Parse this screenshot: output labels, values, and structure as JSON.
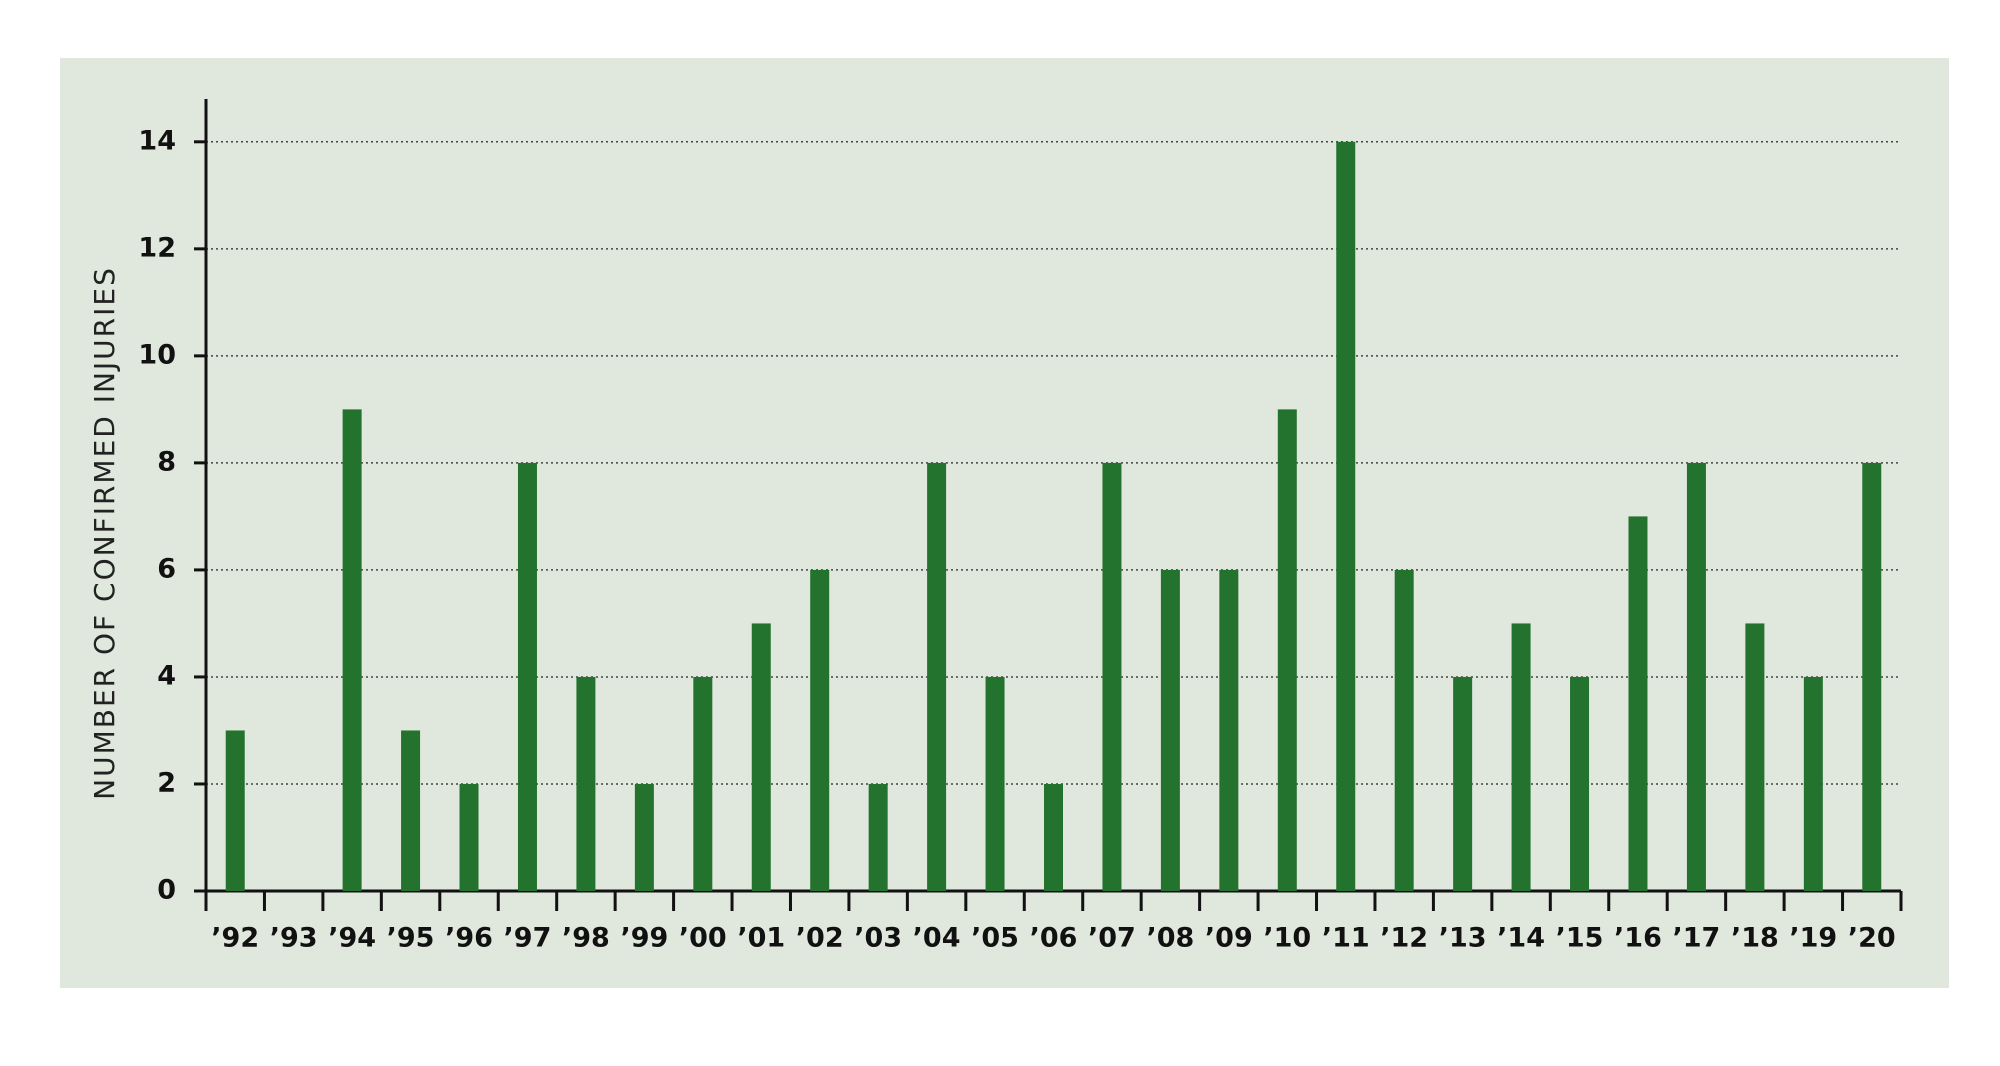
{
  "chart_data": {
    "type": "bar",
    "y_label": "NUMBER OF CONFIRMED INJURIES",
    "categories": [
      "’92",
      "’93",
      "’94",
      "’95",
      "’96",
      "’97",
      "’98",
      "’99",
      "’00",
      "’01",
      "’02",
      "’03",
      "’04",
      "’05",
      "’06",
      "’07",
      "’08",
      "’09",
      "’10",
      "’11",
      "’12",
      "’13",
      "’14",
      "’15",
      "’16",
      "’17",
      "’18",
      "’19",
      "’20"
    ],
    "values": [
      3,
      0,
      9,
      3,
      2,
      8,
      4,
      2,
      4,
      5,
      6,
      2,
      8,
      4,
      2,
      8,
      6,
      6,
      9,
      14,
      6,
      4,
      5,
      4,
      7,
      8,
      5,
      4,
      8
    ],
    "color": "#23732f",
    "ylim": [
      0,
      14.8
    ],
    "yticks": [
      0,
      2,
      4,
      6,
      8,
      10,
      12,
      14
    ],
    "grid": true
  }
}
